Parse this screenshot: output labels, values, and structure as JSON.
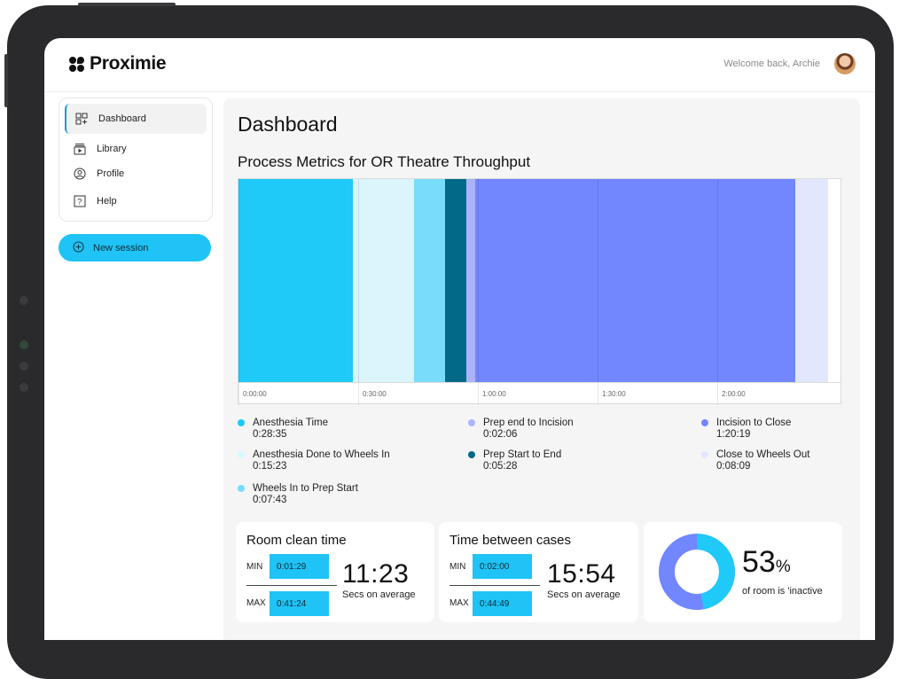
{
  "app": {
    "brand": "Proximie",
    "welcome": "Welcome back, Archie"
  },
  "sidebar": {
    "items": [
      {
        "label": "Dashboard",
        "icon": "dashboard-grid-icon",
        "active": true
      },
      {
        "label": "Library",
        "icon": "library-icon",
        "active": false
      },
      {
        "label": "Profile",
        "icon": "profile-icon",
        "active": false
      },
      {
        "label": "Help",
        "icon": "help-icon",
        "active": false
      }
    ],
    "new_session": "New session"
  },
  "main": {
    "title": "Dashboard",
    "section_title": "Process Metrics for OR Theatre Throughput"
  },
  "chart_data": {
    "type": "bar",
    "orientation": "stacked-horizontal-timeline",
    "title": "Process Metrics for OR Theatre Throughput",
    "x_ticks": [
      "0:00:00",
      "0:30:00",
      "1:00:00",
      "1:30:00",
      "2:00:00"
    ],
    "series": [
      {
        "name": "Anesthesia Time",
        "value": "0:28:35",
        "seconds": 1715,
        "color": "#1fc9f8"
      },
      {
        "name": "Anesthesia Done to Wheels In",
        "value": "0:15:23",
        "seconds": 923,
        "color": "#dbf5fd"
      },
      {
        "name": "Wheels In to Prep Start",
        "value": "0:07:43",
        "seconds": 463,
        "color": "#79dcf8"
      },
      {
        "name": "Prep Start to End",
        "value": "0:05:28",
        "seconds": 328,
        "color": "#026a88"
      },
      {
        "name": "Prep end to Incision",
        "value": "0:02:06",
        "seconds": 126,
        "color": "#abb4fb"
      },
      {
        "name": "Incision to Close",
        "value": "1:20:19",
        "seconds": 4819,
        "color": "#7286fd"
      },
      {
        "name": "Close to Wheels Out",
        "value": "0:08:09",
        "seconds": 489,
        "color": "#e3e7fd"
      }
    ],
    "legend_columns": [
      [
        "Anesthesia Time",
        "Anesthesia Done to Wheels In",
        "Wheels In to Prep Start"
      ],
      [
        "Prep end to Incision",
        "Prep Start to End"
      ],
      [
        "Incision to Close",
        "Close to Wheels Out"
      ]
    ]
  },
  "room_clean": {
    "title": "Room clean time",
    "min_label": "MIN",
    "min_value": "0:01:29",
    "max_label": "MAX",
    "max_value": "0:41:24",
    "average": "11:23",
    "average_label": "Secs on average"
  },
  "between_cases": {
    "title": "Time between cases",
    "min_label": "MIN",
    "min_value": "0:02:00",
    "max_label": "MAX",
    "max_value": "0:44:49",
    "average": "15:54",
    "average_label": "Secs on average"
  },
  "inactive": {
    "percent_value": 53,
    "percent_number": "53",
    "percent_sign": "%",
    "label": "of room is 'inactive",
    "colors": {
      "active": "#1fc9f8",
      "inactive": "#7286fd"
    }
  }
}
